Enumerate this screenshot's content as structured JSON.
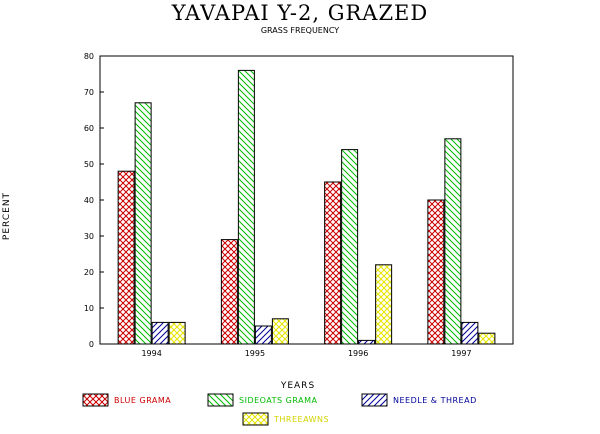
{
  "chart_data": {
    "type": "bar",
    "title": "YAVAPAI Y-2, GRAZED",
    "subtitle": "GRASS FREQUENCY",
    "xlabel": "YEARS",
    "ylabel": "PERCENT",
    "ylim": [
      0,
      80
    ],
    "yticks": [
      "0",
      "10",
      "20",
      "30",
      "40",
      "50",
      "60",
      "70",
      "80"
    ],
    "categories": [
      "1994",
      "1995",
      "1996",
      "1997"
    ],
    "series": [
      {
        "name": "BLUE GRAMA",
        "values": [
          48,
          29,
          45,
          40
        ],
        "color": "#cc0000",
        "pattern": "crosshatch"
      },
      {
        "name": "SIDEOATS GRAMA",
        "values": [
          67,
          76,
          54,
          57
        ],
        "color": "#00bb00",
        "pattern": "diag-back"
      },
      {
        "name": "NEEDLE & THREAD",
        "values": [
          6,
          5,
          1,
          6
        ],
        "color": "#000099",
        "pattern": "diag-fwd"
      },
      {
        "name": "THREEAWNS",
        "values": [
          6,
          7,
          22,
          3
        ],
        "color": "#e6e600",
        "pattern": "crosshatch"
      }
    ],
    "legend_position": "bottom",
    "grid": false
  }
}
